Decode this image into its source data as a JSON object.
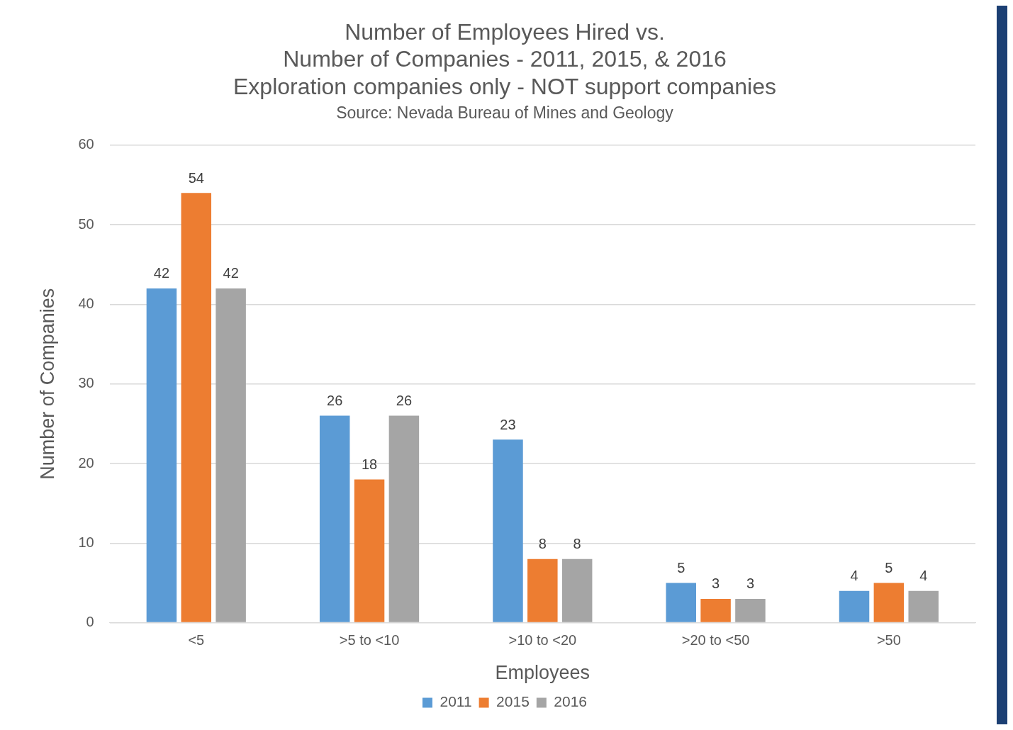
{
  "chart_data": {
    "type": "bar",
    "title": "Number of Employees Hired vs.\nNumber of Companies - 2011, 2015, & 2016\nExploration companies only - NOT support companies",
    "subtitle": "Source: Nevada Bureau of Mines and Geology",
    "xlabel": "Employees",
    "ylabel": "Number of Companies",
    "categories": [
      "<5",
      ">5 to <10",
      ">10 to <20",
      ">20 to <50",
      ">50"
    ],
    "series": [
      {
        "name": "2011",
        "color": "#5b9bd5",
        "values": [
          42,
          26,
          23,
          5,
          4
        ]
      },
      {
        "name": "2015",
        "color": "#ed7d31",
        "values": [
          54,
          18,
          8,
          3,
          5
        ]
      },
      {
        "name": "2016",
        "color": "#a5a5a5",
        "values": [
          42,
          26,
          8,
          3,
          4
        ]
      }
    ],
    "ylim": [
      0,
      60
    ],
    "yticks": [
      0,
      10,
      20,
      30,
      40,
      50,
      60
    ],
    "grid": "y",
    "legend": "bottom",
    "data_labels": true
  }
}
